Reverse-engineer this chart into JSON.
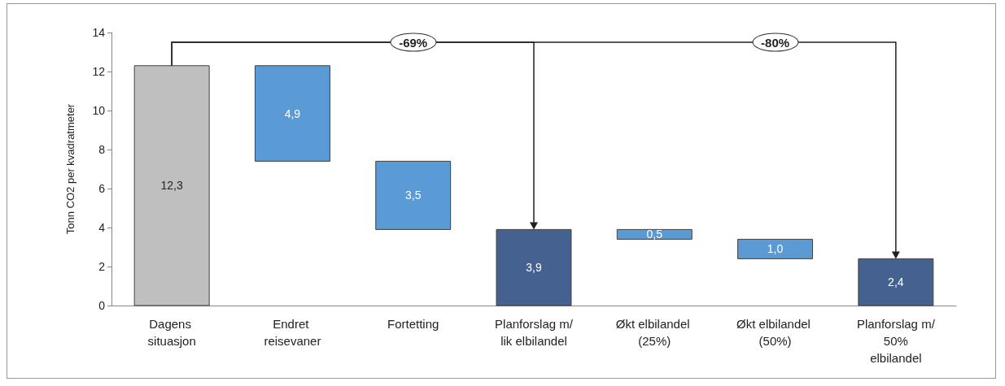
{
  "chart_data": {
    "type": "bar",
    "ylabel": "Tonn CO2 per kvadratmeter",
    "categories": [
      "Dagens situasjon",
      "Endret reisevaner",
      "Fortetting",
      "Planforslag m/lik elbilandel",
      "Økt elbilandel (25%)",
      "Økt elbilandel (50%)",
      "Planforslag m/ 50% elbilandel"
    ],
    "values": [
      12.3,
      4.9,
      3.5,
      3.9,
      0.5,
      1.0,
      2.4
    ],
    "base": [
      0,
      7.4,
      3.9,
      0,
      3.4,
      2.4,
      0
    ],
    "colors": [
      "#bfbfbf",
      "#5b9bd5",
      "#5b9bd5",
      "#44618f",
      "#5b9bd5",
      "#5b9bd5",
      "#44618f"
    ],
    "value_labels": [
      "12,3",
      "4,9",
      "3,5",
      "3,9",
      "0,5",
      "1,0",
      "2,4"
    ],
    "annotations": [
      "-69%",
      "-80%"
    ],
    "ylim": [
      0,
      14
    ],
    "yticks": [
      0,
      2,
      4,
      6,
      8,
      10,
      12,
      14
    ],
    "grid": false
  }
}
